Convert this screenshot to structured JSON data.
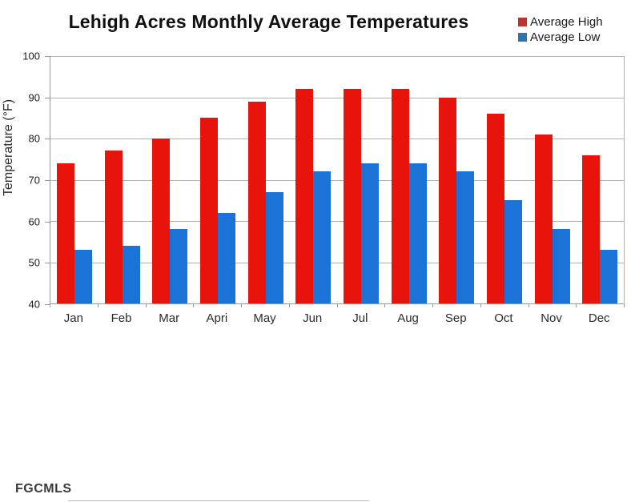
{
  "title": "Lehigh Acres Monthly Average Temperatures",
  "watermark": "FGCMLS",
  "legend": [
    {
      "label": "Average High",
      "color": "#bc342d"
    },
    {
      "label": "Average Low",
      "color": "#2d73b4"
    }
  ],
  "chart_data": {
    "type": "bar",
    "title": "Lehigh Acres Monthly Average Temperatures",
    "xlabel": "",
    "ylabel": "Temperature (°F)",
    "ylim": [
      40,
      100
    ],
    "ytick_step": 10,
    "grid": true,
    "legend_position": "top-right",
    "categories": [
      "Jan",
      "Feb",
      "Mar",
      "Apri",
      "May",
      "Jun",
      "Jul",
      "Aug",
      "Sep",
      "Oct",
      "Nov",
      "Dec"
    ],
    "series": [
      {
        "name": "Average High",
        "color": "#e8140c",
        "values": [
          74,
          77,
          80,
          85,
          89,
          92,
          92,
          92,
          90,
          86,
          81,
          76
        ]
      },
      {
        "name": "Average Low",
        "color": "#1b73d7",
        "values": [
          53,
          54,
          58,
          62,
          67,
          72,
          74,
          74,
          72,
          65,
          58,
          53
        ]
      }
    ]
  }
}
